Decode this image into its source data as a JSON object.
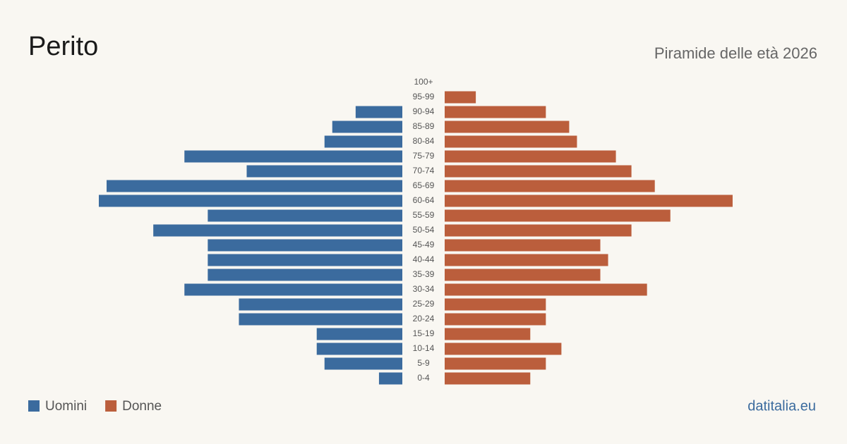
{
  "chart_data": {
    "type": "pyramid",
    "title": "Perito",
    "subtitle": "Piramide delle età 2026",
    "source": "datitalia.eu",
    "categories": [
      "100+",
      "95-99",
      "90-94",
      "85-89",
      "80-84",
      "75-79",
      "70-74",
      "65-69",
      "60-64",
      "55-59",
      "50-54",
      "45-49",
      "40-44",
      "35-39",
      "30-34",
      "25-29",
      "20-24",
      "15-19",
      "10-14",
      "5-9",
      "0-4"
    ],
    "series": [
      {
        "name": "Uomini",
        "color": "#3b6b9e",
        "values": [
          0,
          0,
          6,
          9,
          10,
          28,
          20,
          38,
          39,
          25,
          32,
          25,
          25,
          25,
          28,
          21,
          21,
          11,
          11,
          10,
          3
        ]
      },
      {
        "name": "Donne",
        "color": "#bb5e3c",
        "values": [
          0,
          4,
          13,
          16,
          17,
          22,
          24,
          27,
          37,
          29,
          24,
          20,
          21,
          20,
          26,
          13,
          13,
          11,
          15,
          13,
          11
        ]
      }
    ]
  }
}
